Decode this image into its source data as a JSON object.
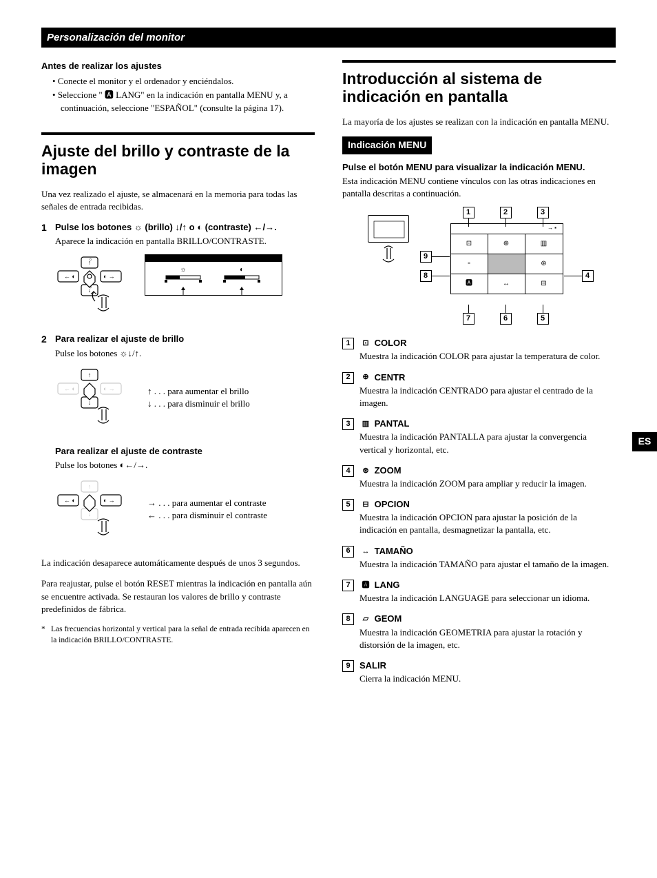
{
  "banner": "Personalización del monitor",
  "sideTab": "ES",
  "left": {
    "preTitle": "Antes de realizar los ajustes",
    "preBullets": [
      "Conecte el monitor y el ordenador y enciéndalos.",
      "Seleccione \" 🅰 LANG\" en la indicación en pantalla MENU y, a continuación, seleccione \"ESPAÑOL\" (consulte la página 17)."
    ],
    "h1": "Ajuste del brillo y contraste de la imagen",
    "intro": "Una vez realizado el ajuste, se almacenará en la memoria para todas las señales de entrada recibidas.",
    "step1Title": "Pulse los botones ☼ (brillo) ↓/↑ o ◐ (contraste) ←/→.",
    "step1Body": "Aparece la indicación en pantalla BRILLO/CONTRASTE.",
    "step2Title": "Para realizar el ajuste de brillo",
    "step2Body": "Pulse los botones ☼↓/↑.",
    "step2Up": "↑ . . . para aumentar el brillo",
    "step2Down": "↓ . . . para disminuir el brillo",
    "step2bTitle": "Para realizar el ajuste de contraste",
    "step2bBody": "Pulse los botones ◐←/→.",
    "step2bRight": "→ . . . para aumentar el contraste",
    "step2bLeft": "← . . . para disminuir el contraste",
    "autoOff": "La indicación desaparece automáticamente después de unos 3 segundos.",
    "reset": "Para reajustar, pulse el botón RESET mientras la indicación en pantalla aún se encuentre activada. Se restauran los valores de brillo y contraste predefinidos de fábrica.",
    "footnote": "Las frecuencias horizontal y vertical para la señal de entrada recibida aparecen en la indicación BRILLO/CONTRASTE."
  },
  "right": {
    "h1": "Introducción al sistema de indicación en pantalla",
    "intro": "La mayoría de los ajustes se realizan con la indicación en pantalla MENU.",
    "subBanner": "Indicación MENU",
    "pressTitle": "Pulse el botón MENU para visualizar la indicación MENU.",
    "pressBody": "Esta indicación MENU contiene vínculos con las otras indicaciones en pantalla descritas a continuación.",
    "items": [
      {
        "n": "1",
        "icon": "⊡",
        "title": "COLOR",
        "body": "Muestra la indicación COLOR para ajustar la temperatura de color."
      },
      {
        "n": "2",
        "icon": "⊕",
        "title": "CENTR",
        "body": "Muestra la indicación CENTRADO para ajustar el centrado de la imagen."
      },
      {
        "n": "3",
        "icon": "▥",
        "title": "PANTAL",
        "body": "Muestra la indicación PANTALLA para ajustar la convergencia vertical y horizontal, etc."
      },
      {
        "n": "4",
        "icon": "⊛",
        "title": "ZOOM",
        "body": "Muestra la indicación ZOOM para ampliar y reducir la imagen."
      },
      {
        "n": "5",
        "icon": "⊟",
        "title": "OPCION",
        "body": "Muestra la indicación OPCION para ajustar la posición de la indicación en pantalla, desmagnetizar la pantalla, etc."
      },
      {
        "n": "6",
        "icon": "↔",
        "title": "TAMAÑO",
        "body": "Muestra la indicación TAMAÑO para ajustar el tamaño de la imagen."
      },
      {
        "n": "7",
        "icon": "🅰",
        "title": "LANG",
        "body": "Muestra la indicación LANGUAGE para seleccionar un idioma."
      },
      {
        "n": "8",
        "icon": "▱",
        "title": "GEOM",
        "body": "Muestra la indicación GEOMETRIA para ajustar la rotación y distorsión de la imagen, etc."
      },
      {
        "n": "9",
        "icon": "",
        "title": "SALIR",
        "body": "Cierra la indicación MENU."
      }
    ]
  }
}
